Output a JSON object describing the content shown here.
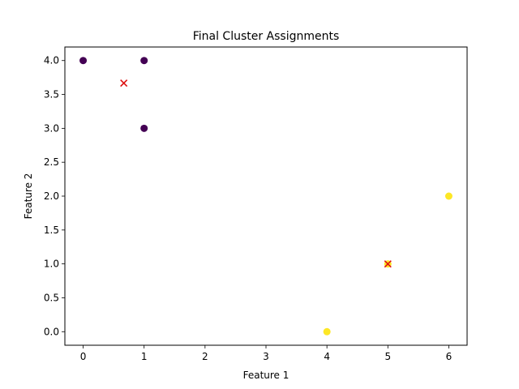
{
  "chart_data": {
    "type": "scatter",
    "title": "Final Cluster Assignments",
    "xlabel": "Feature 1",
    "ylabel": "Feature 2",
    "xlim": [
      -0.3,
      6.3
    ],
    "ylim": [
      -0.2,
      4.2
    ],
    "x_ticks": [
      0,
      1,
      2,
      3,
      4,
      5,
      6
    ],
    "x_tick_labels": [
      "0",
      "1",
      "2",
      "3",
      "4",
      "5",
      "6"
    ],
    "y_ticks": [
      0.0,
      0.5,
      1.0,
      1.5,
      2.0,
      2.5,
      3.0,
      3.5,
      4.0
    ],
    "y_tick_labels": [
      "0.0",
      "0.5",
      "1.0",
      "1.5",
      "2.0",
      "2.5",
      "3.0",
      "3.5",
      "4.0"
    ],
    "grid": false,
    "series": [
      {
        "marker": "circle",
        "color": "#440154",
        "points": [
          [
            0,
            4
          ],
          [
            1,
            4
          ],
          [
            1,
            3
          ]
        ]
      },
      {
        "marker": "circle",
        "color": "#fde725",
        "points": [
          [
            4,
            0
          ],
          [
            5,
            1
          ],
          [
            6,
            2
          ]
        ]
      },
      {
        "marker": "x",
        "color": "#dd1111",
        "points": [
          [
            0.667,
            3.667
          ],
          [
            5,
            1
          ]
        ]
      }
    ]
  }
}
